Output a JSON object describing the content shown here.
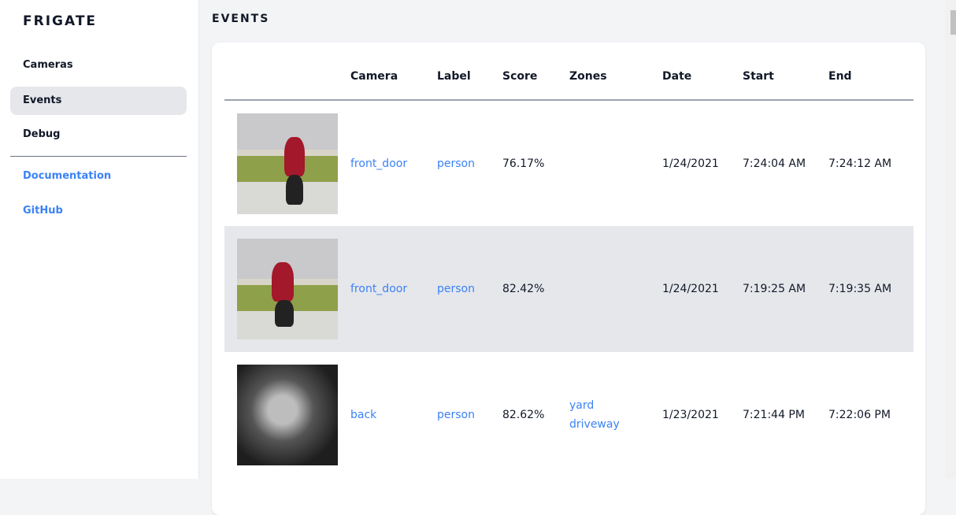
{
  "sidebar": {
    "brand": "FRIGATE",
    "items": [
      {
        "label": "Cameras"
      },
      {
        "label": "Events",
        "active": true
      },
      {
        "label": "Debug"
      }
    ],
    "links": [
      {
        "label": "Documentation"
      },
      {
        "label": "GitHub"
      }
    ]
  },
  "page": {
    "title": "EVENTS"
  },
  "table": {
    "headers": [
      "",
      "Camera",
      "Label",
      "Score",
      "Zones",
      "Date",
      "Start",
      "End"
    ],
    "rows": [
      {
        "camera": "front_door",
        "label": "person",
        "score": "76.17%",
        "zones": [
          "",
          ""
        ],
        "date": "1/24/2021",
        "start": "7:24:04 AM",
        "end": "7:24:12 AM"
      },
      {
        "camera": "front_door",
        "label": "person",
        "score": "82.42%",
        "zones": [
          "",
          ""
        ],
        "date": "1/24/2021",
        "start": "7:19:25 AM",
        "end": "7:19:35 AM"
      },
      {
        "camera": "back",
        "label": "person",
        "score": "82.62%",
        "zones": [
          "yard",
          "driveway"
        ],
        "date": "1/23/2021",
        "start": "7:21:44 PM",
        "end": "7:22:06 PM"
      }
    ]
  },
  "colors": {
    "accent": "#3b82f6",
    "active_bg": "#e5e7eb",
    "page_bg": "#f3f4f6"
  }
}
